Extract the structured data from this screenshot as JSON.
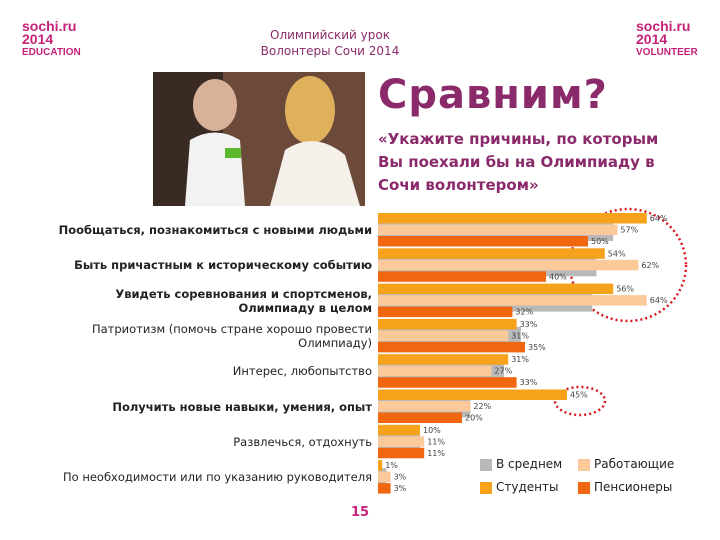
{
  "logos": {
    "left": [
      "sochi.ru",
      "2014",
      "EDUCATION"
    ],
    "right": [
      "sochi.ru",
      "2014",
      "VOLUNTEER"
    ]
  },
  "header": {
    "line1": "Олимпийский урок",
    "line2": "Волонтеры Сочи 2014"
  },
  "title": "Сравним?",
  "question": "«Укажите причины, по которым Вы поехали бы на Олимпиаду в Сочи волонтером»",
  "page_number": "15",
  "chart_data": {
    "type": "bar",
    "orientation": "horizontal",
    "categories": [
      "Пообщаться, познакомиться с новыми людьми",
      "Быть причастным к историческому событию",
      "Увидеть соревнования и спортсменов, Олимпиаду в целом",
      "Патриотизм (помочь стране хорошо провести Олимпиаду)",
      "Интерес, любопытство",
      "Получить новые навыки, умения, опыт",
      "Развлечься, отдохнуть",
      "По необходимости или  по указанию руководителя"
    ],
    "series": [
      {
        "name": "В среднем",
        "color": "#b9b9b9",
        "values": [
          56,
          52,
          51,
          34,
          30,
          22,
          10,
          2
        ]
      },
      {
        "name": "Работающие",
        "color": "#fbc99a",
        "values": [
          57,
          62,
          64,
          31,
          27,
          22,
          11,
          3
        ],
        "value_labels": [
          "57%",
          "62%",
          "64%",
          "31%",
          "27%",
          "22%",
          "11%",
          "3%"
        ]
      },
      {
        "name": "Студенты",
        "color": "#f7a21b",
        "values": [
          64,
          54,
          56,
          33,
          31,
          45,
          10,
          1
        ],
        "value_labels": [
          "64%",
          "54%",
          "56%",
          "33%",
          "31%",
          "45%",
          "10%",
          "1%"
        ]
      },
      {
        "name": "Пенсионеры",
        "color": "#f0670f",
        "values": [
          50,
          40,
          32,
          35,
          33,
          20,
          11,
          3
        ],
        "value_labels": [
          "50%",
          "40%",
          "32%",
          "35%",
          "33%",
          "20%",
          "11%",
          "3%"
        ]
      }
    ]
  }
}
